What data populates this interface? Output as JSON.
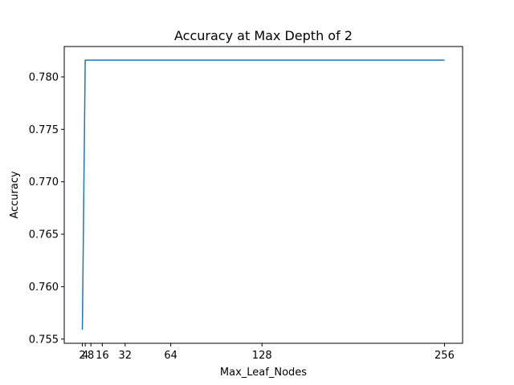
{
  "chart_data": {
    "type": "line",
    "title": "Accuracy at Max Depth of 2",
    "xlabel": "Max_Leaf_Nodes",
    "ylabel": "Accuracy",
    "x": [
      2,
      4,
      8,
      16,
      32,
      64,
      128,
      256
    ],
    "series": [
      {
        "color": "#1f77b4",
        "values": [
          0.7559,
          0.7816,
          0.7816,
          0.7816,
          0.7816,
          0.7816,
          0.7816,
          0.7816
        ]
      }
    ],
    "xlim": [
      -10.7,
      268.7
    ],
    "ylim": [
      0.7546,
      0.7829
    ],
    "xticks": [
      2,
      4,
      8,
      16,
      32,
      64,
      128,
      256
    ],
    "xtick_labels": [
      "2",
      "4",
      "8",
      "16",
      "32",
      "64",
      "128",
      "256"
    ],
    "yticks": [
      0.755,
      0.76,
      0.765,
      0.77,
      0.775,
      0.78
    ],
    "ytick_labels": [
      "0.755",
      "0.760",
      "0.765",
      "0.770",
      "0.775",
      "0.780"
    ],
    "grid": false,
    "legend": "none"
  }
}
